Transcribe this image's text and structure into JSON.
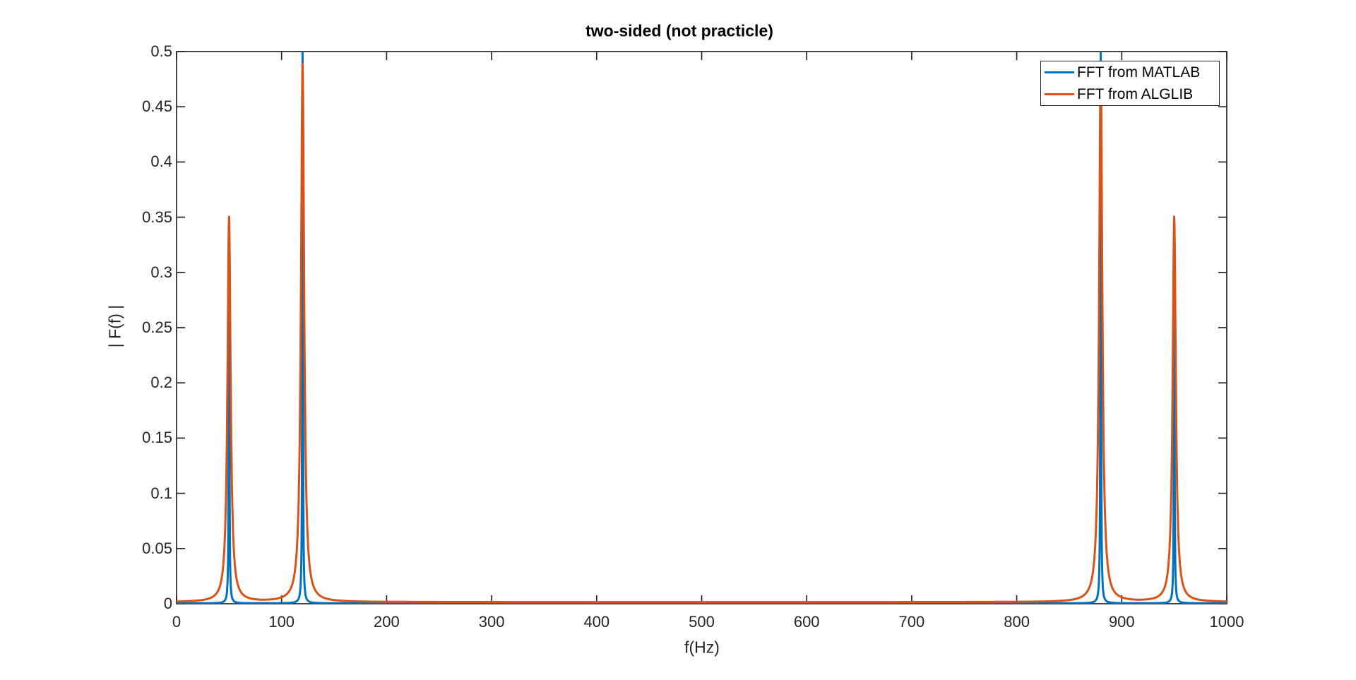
{
  "figure": {
    "background": "#ffffff",
    "axes_color": "#262626",
    "tick_label_color": "#262626",
    "title_color": "#000000"
  },
  "chart_data": {
    "type": "line",
    "title": "two-sided (not practicle)",
    "xlabel": "f(Hz)",
    "ylabel": "| F(f) |",
    "xlim": [
      0,
      1000
    ],
    "ylim": [
      0,
      0.5
    ],
    "x_ticks": [
      0,
      100,
      200,
      300,
      400,
      500,
      600,
      700,
      800,
      900,
      1000
    ],
    "y_ticks": [
      0,
      0.05,
      0.1,
      0.15,
      0.2,
      0.25,
      0.3,
      0.35,
      0.4,
      0.45,
      0.5
    ],
    "grid": false,
    "box": true,
    "tick_direction": "in",
    "legend_position": "northeast",
    "series": [
      {
        "name": "FFT from MATLAB",
        "color": "#0072BD",
        "line_width": 3,
        "peak_half_width_hz": 0.35,
        "baseline": 0.0004,
        "peaks": [
          {
            "f": 50,
            "amplitude": 0.35
          },
          {
            "f": 120,
            "amplitude": 0.5
          },
          {
            "f": 880,
            "amplitude": 0.5
          },
          {
            "f": 950,
            "amplitude": 0.35
          }
        ]
      },
      {
        "name": "FFT from ALGLIB",
        "color": "#D95319",
        "line_width": 3,
        "peak_half_width_hz": 1.8,
        "baseline": 0.0015,
        "peaks": [
          {
            "f": 50,
            "amplitude": 0.348
          },
          {
            "f": 120,
            "amplitude": 0.487
          },
          {
            "f": 880,
            "amplitude": 0.487
          },
          {
            "f": 950,
            "amplitude": 0.348
          }
        ]
      }
    ]
  }
}
